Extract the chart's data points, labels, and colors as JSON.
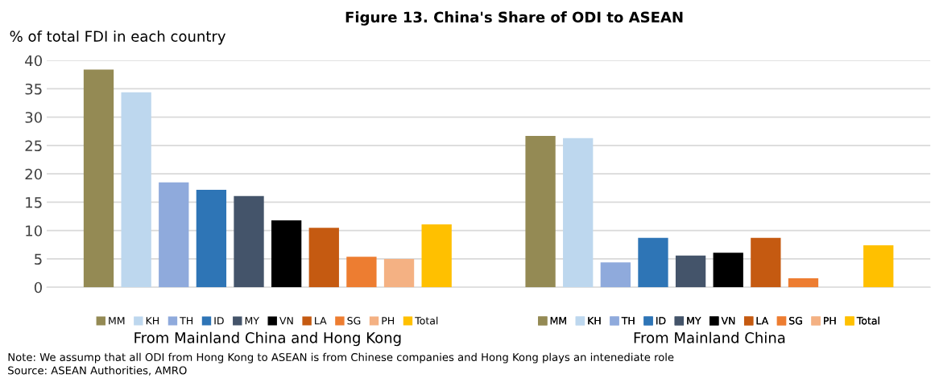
{
  "chart_data": {
    "type": "bar",
    "title": "Figure 13. China's Share of ODI to ASEAN",
    "ylabel": "% of total FDI in each country",
    "categories": [
      "From Mainland China and Hong Kong",
      "From Mainland China"
    ],
    "series": [
      {
        "name": "MM",
        "color": "#948a54",
        "values": [
          38.4,
          26.7
        ]
      },
      {
        "name": "KH",
        "color": "#bdd7ee",
        "values": [
          34.4,
          26.3
        ]
      },
      {
        "name": "TH",
        "color": "#8faadc",
        "values": [
          18.5,
          4.4
        ]
      },
      {
        "name": "ID",
        "color": "#2e75b6",
        "values": [
          17.2,
          8.7
        ]
      },
      {
        "name": "MY",
        "color": "#44546a",
        "values": [
          16.1,
          5.6
        ]
      },
      {
        "name": "VN",
        "color": "#000000",
        "values": [
          11.8,
          6.1
        ]
      },
      {
        "name": "LA",
        "color": "#c55a11",
        "values": [
          10.5,
          8.7
        ]
      },
      {
        "name": "SG",
        "color": "#ed7d31",
        "values": [
          5.4,
          1.6
        ]
      },
      {
        "name": "PH",
        "color": "#f4b183",
        "values": [
          5.0,
          null
        ]
      },
      {
        "name": "Total",
        "color": "#ffc000",
        "values": [
          11.1,
          7.4
        ]
      }
    ],
    "ylim": [
      0,
      40
    ],
    "yticks": [
      0,
      5,
      10,
      15,
      20,
      25,
      30,
      35,
      40
    ],
    "grid": "y",
    "legend": "bottom",
    "annotations": [
      "Note: We assump that all ODI from Hong Kong to ASEAN is from Chinese companies and Hong Kong plays an intenediate role",
      "Source: ASEAN Authorities, AMRO"
    ]
  }
}
